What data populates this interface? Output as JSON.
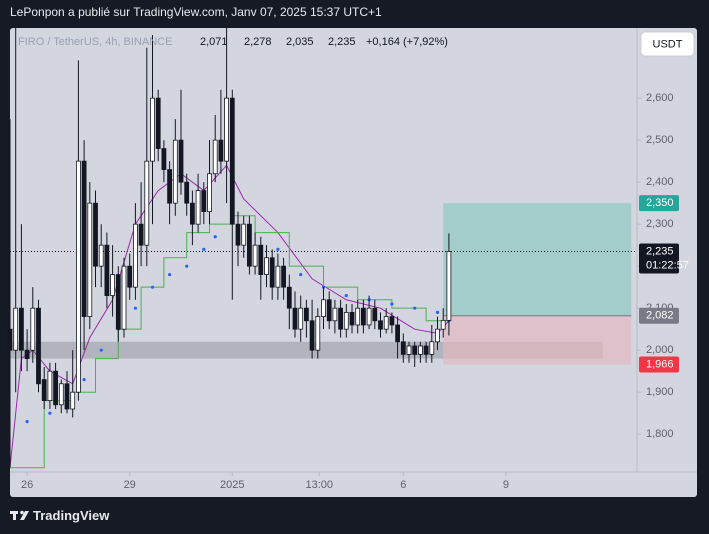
{
  "header": {
    "author_line": "LePonpon a publié sur TradingView.com, Janv 07, 2025 15:37 UTC+1",
    "brand": "TradingView"
  },
  "chart_data": {
    "type": "candlestick",
    "symbol": "FIRO / TetherUS, 4h, BINANCE",
    "legend": {
      "open": "2,071",
      "high": "2,278",
      "low": "2,035",
      "close": "2,235",
      "change": "+0,164 (+7,92%)"
    },
    "currency": "USDT",
    "countdown": "01:22:57",
    "xlim": [
      -3,
      107
    ],
    "xticks": [
      {
        "value": 0,
        "label": "26"
      },
      {
        "value": 18,
        "label": "29"
      },
      {
        "value": 36,
        "label": "2025"
      },
      {
        "value": 51.25,
        "label": "13:00"
      },
      {
        "value": 66,
        "label": "6"
      },
      {
        "value": 84,
        "label": "9"
      }
    ],
    "ylim": [
      1.71,
      2.767
    ],
    "yticks": [
      {
        "value": 1.8,
        "label": "1,800"
      },
      {
        "value": 1.9,
        "label": "1,900"
      },
      {
        "value": 2.0,
        "label": "2,000"
      },
      {
        "value": 2.1,
        "label": "2,100"
      },
      {
        "value": 2.2,
        "label": "2,200"
      },
      {
        "value": 2.3,
        "label": "2,300"
      },
      {
        "value": 2.4,
        "label": "2,400"
      },
      {
        "value": 2.5,
        "label": "2,500"
      },
      {
        "value": 2.6,
        "label": "2,600"
      }
    ],
    "up_color": "#ffffff",
    "down_color": "#131722",
    "x": [
      -3,
      -2,
      -1,
      0,
      1,
      2,
      3,
      4,
      5,
      6,
      7,
      8,
      9,
      10,
      11,
      12,
      13,
      14,
      15,
      16,
      17,
      18,
      19,
      20,
      21,
      22,
      23,
      24,
      25,
      26,
      27,
      28,
      29,
      30,
      31,
      32,
      33,
      34,
      35,
      36,
      37,
      38,
      39,
      40,
      41,
      42,
      43,
      44,
      45,
      46,
      47,
      48,
      49,
      50,
      51,
      52,
      53,
      54,
      55,
      56,
      57,
      58,
      59,
      60,
      61,
      62,
      63,
      64,
      65,
      66,
      67,
      68,
      69,
      70,
      71,
      72,
      73,
      74
    ],
    "open": [
      2.05,
      2.0,
      2.1,
      2.0,
      2.0,
      2.1,
      1.93,
      1.88,
      1.95,
      1.87,
      1.92,
      1.86,
      1.9,
      2.45,
      2.08,
      2.35,
      2.2,
      2.25,
      2.13,
      2.18,
      2.05,
      2.2,
      2.15,
      2.3,
      2.25,
      2.45,
      2.6,
      2.48,
      2.43,
      2.35,
      2.5,
      2.4,
      2.35,
      2.3,
      2.38,
      2.33,
      2.42,
      2.5,
      2.45,
      2.6,
      2.3,
      2.25,
      2.3,
      2.2,
      2.25,
      2.18,
      2.22,
      2.15,
      2.2,
      2.15,
      2.1,
      2.05,
      2.1,
      2.07,
      2.0,
      2.08,
      2.12,
      2.07,
      2.1,
      2.05,
      2.09,
      2.06,
      2.1,
      2.06,
      2.1,
      2.07,
      2.05,
      2.08,
      2.06,
      2.02,
      1.99,
      2.01,
      1.99,
      2.01,
      1.99,
      2.02,
      2.05,
      2.071
    ],
    "high": [
      2.55,
      2.77,
      2.3,
      2.05,
      2.15,
      2.12,
      1.96,
      1.97,
      1.97,
      1.93,
      1.95,
      2.0,
      2.69,
      2.5,
      2.4,
      2.38,
      2.3,
      2.28,
      2.25,
      2.2,
      2.22,
      2.23,
      2.35,
      2.4,
      2.72,
      2.75,
      2.62,
      2.5,
      2.45,
      2.55,
      2.62,
      2.42,
      2.38,
      2.42,
      2.4,
      2.5,
      2.56,
      2.62,
      2.77,
      2.62,
      2.33,
      2.32,
      2.32,
      2.28,
      2.27,
      2.25,
      2.24,
      2.23,
      2.22,
      2.18,
      2.14,
      2.13,
      2.12,
      2.12,
      2.1,
      2.15,
      2.14,
      2.12,
      2.12,
      2.11,
      2.11,
      2.12,
      2.12,
      2.13,
      2.12,
      2.09,
      2.1,
      2.09,
      2.08,
      2.04,
      2.02,
      2.02,
      2.02,
      2.02,
      2.06,
      2.08,
      2.1,
      2.278
    ],
    "low": [
      1.72,
      1.9,
      1.95,
      1.95,
      1.97,
      1.9,
      1.86,
      1.86,
      1.86,
      1.85,
      1.85,
      1.84,
      1.88,
      2.0,
      2.05,
      2.15,
      2.15,
      2.1,
      2.08,
      2.02,
      2.03,
      2.12,
      2.12,
      2.2,
      2.2,
      2.3,
      2.45,
      2.4,
      2.3,
      2.32,
      2.37,
      2.32,
      2.25,
      2.28,
      2.3,
      2.3,
      2.4,
      2.42,
      2.35,
      2.12,
      2.2,
      2.22,
      2.18,
      2.18,
      2.12,
      2.15,
      2.12,
      2.12,
      2.12,
      2.05,
      2.03,
      2.02,
      2.03,
      1.98,
      1.98,
      2.05,
      2.05,
      2.04,
      2.03,
      2.03,
      2.04,
      2.04,
      2.04,
      2.05,
      2.05,
      2.03,
      2.04,
      2.04,
      1.98,
      1.97,
      1.97,
      1.96,
      1.97,
      1.97,
      1.97,
      2.0,
      2.03,
      2.035
    ],
    "close": [
      2.0,
      2.1,
      2.0,
      1.98,
      2.1,
      1.92,
      1.88,
      1.95,
      1.87,
      1.92,
      1.86,
      1.9,
      2.45,
      2.08,
      2.35,
      2.2,
      2.25,
      2.13,
      2.18,
      2.05,
      2.2,
      2.15,
      2.3,
      2.25,
      2.45,
      2.6,
      2.48,
      2.43,
      2.35,
      2.5,
      2.4,
      2.35,
      2.3,
      2.38,
      2.33,
      2.42,
      2.5,
      2.45,
      2.6,
      2.3,
      2.25,
      2.3,
      2.2,
      2.25,
      2.18,
      2.22,
      2.15,
      2.2,
      2.15,
      2.1,
      2.05,
      2.1,
      2.07,
      2.0,
      2.08,
      2.12,
      2.07,
      2.1,
      2.05,
      2.09,
      2.06,
      2.1,
      2.06,
      2.1,
      2.07,
      2.05,
      2.08,
      2.06,
      2.02,
      1.99,
      2.01,
      1.99,
      2.01,
      1.99,
      2.02,
      2.05,
      2.071,
      2.235
    ],
    "indicators": [
      {
        "style": "line",
        "color": "#9c27b0",
        "x": [
          -3,
          -1,
          1,
          4,
          8,
          11,
          15,
          19,
          23,
          27,
          31,
          35,
          38,
          44,
          50,
          56,
          62,
          68,
          72,
          74
        ],
        "values": [
          1.72,
          1.98,
          2.0,
          1.95,
          1.92,
          2.03,
          2.12,
          2.3,
          2.38,
          2.42,
          2.38,
          2.44,
          2.36,
          2.28,
          2.17,
          2.12,
          2.1,
          2.05,
          2.04,
          2.07
        ]
      },
      {
        "style": "step",
        "color": "#4caf50",
        "x": [
          -3,
          3,
          8,
          12,
          16,
          20,
          24,
          28,
          32,
          36,
          40,
          46,
          52,
          58,
          64,
          70,
          74
        ],
        "values": [
          1.72,
          1.88,
          1.9,
          1.98,
          2.05,
          2.15,
          2.22,
          2.28,
          2.3,
          2.32,
          2.28,
          2.2,
          2.15,
          2.12,
          2.1,
          2.07,
          2.06
        ]
      },
      {
        "style": "dots",
        "color": "#2962ff",
        "x": [
          0,
          4,
          8,
          10,
          13,
          16,
          19,
          22,
          25,
          28,
          31,
          33,
          44,
          48,
          52,
          56,
          60,
          64,
          68,
          72,
          74
        ],
        "values": [
          1.83,
          1.85,
          1.87,
          1.93,
          2.0,
          2.05,
          2.1,
          2.15,
          2.18,
          2.2,
          2.24,
          2.27,
          2.24,
          2.18,
          2.15,
          2.13,
          2.12,
          2.11,
          2.1,
          2.09,
          2.07
        ]
      }
    ],
    "zone": {
      "x": [
        -3,
        101
      ],
      "y": [
        1.98,
        2.02
      ],
      "color": "#9598a1"
    },
    "position": {
      "x": [
        73,
        106
      ],
      "target": 2.35,
      "entry": 2.082,
      "stop": 1.966
    },
    "price_labels": [
      {
        "value": 2.35,
        "label": "2,350",
        "color": "#26a69a"
      },
      {
        "value": 2.235,
        "label": "2,235",
        "color": "#131722"
      },
      {
        "value": 2.082,
        "label": "2,082",
        "color": "#787b86"
      },
      {
        "value": 1.966,
        "label": "1,966",
        "color": "#f23645"
      }
    ]
  }
}
